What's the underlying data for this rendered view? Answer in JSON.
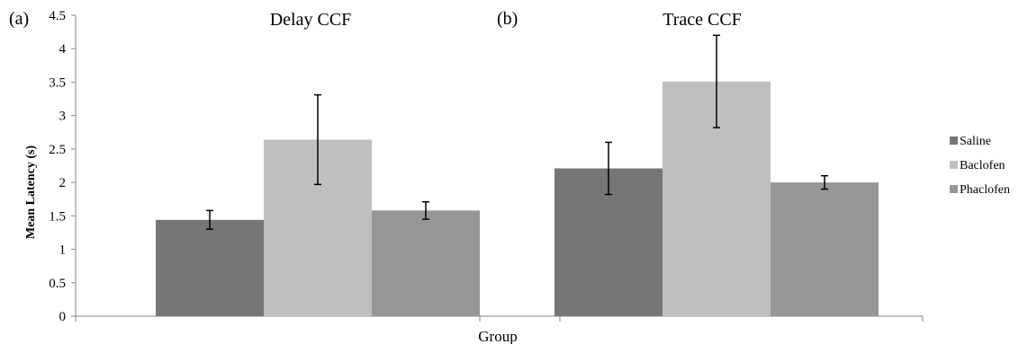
{
  "chart_data": {
    "type": "bar",
    "categories": [
      "Delay CCF",
      "Trace CCF"
    ],
    "panel_labels": [
      "(a)",
      "(b)"
    ],
    "series": [
      {
        "name": "Saline",
        "values": [
          1.44,
          2.21
        ],
        "errors": [
          0.14,
          0.39
        ],
        "color": "#767676"
      },
      {
        "name": "Baclofen",
        "values": [
          2.64,
          3.51
        ],
        "errors": [
          0.67,
          0.69
        ],
        "color": "#bfbfbf"
      },
      {
        "name": "Phaclofen",
        "values": [
          1.58,
          2.0
        ],
        "errors": [
          0.13,
          0.1
        ],
        "color": "#969696"
      }
    ],
    "xlabel": "Group",
    "ylabel": "Mean Latency (s)",
    "ylim": [
      0,
      4.5
    ],
    "yticks": [
      "0",
      "0.5",
      "1",
      "1.5",
      "2",
      "2.5",
      "3",
      "3.5",
      "4",
      "4.5"
    ],
    "grid": false,
    "legend_position": "right"
  }
}
